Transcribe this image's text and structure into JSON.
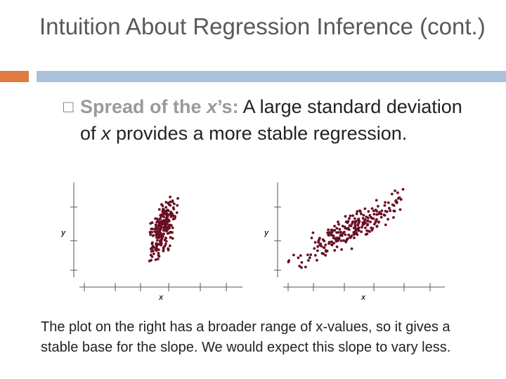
{
  "slide": {
    "title": "Intuition About Regression Inference (cont.)",
    "bullet": {
      "highlight_prefix": "Spread of the ",
      "highlight_var": "x",
      "highlight_suffix": "’s:",
      "text_1": " A large standard deviation of ",
      "text_var": "x",
      "text_2": " provides a more stable regression."
    },
    "caption": "The plot on the right has a broader range of x-values, so it gives a stable base for the slope. We would expect this slope to vary less."
  },
  "colors": {
    "accent_orange": "#e07a3f",
    "accent_blue": "#a9c1da",
    "points": "#6b0f24",
    "highlight": "#9a9a9a"
  },
  "chart_data": [
    {
      "type": "scatter",
      "title": "",
      "xlabel": "x",
      "ylabel": "y",
      "grid": false,
      "x_spread": "narrow"
    },
    {
      "type": "scatter",
      "title": "",
      "xlabel": "x",
      "ylabel": "y",
      "grid": false,
      "x_spread": "wide"
    }
  ]
}
